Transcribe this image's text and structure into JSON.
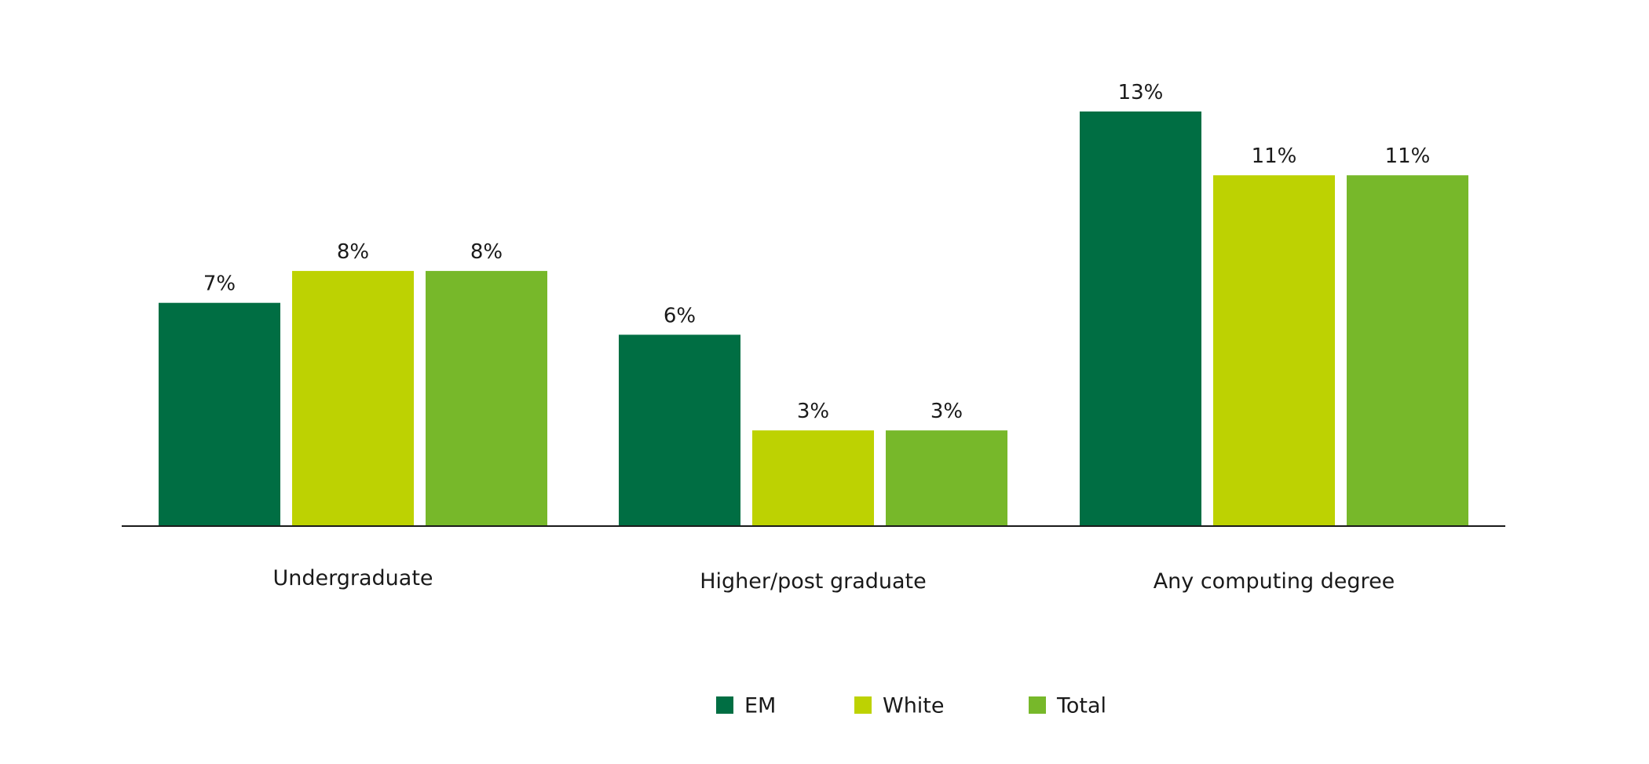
{
  "chart_data": {
    "type": "bar",
    "categories": [
      "Undergraduate",
      "Higher/post graduate",
      "Any computing degree"
    ],
    "series": [
      {
        "name": "EM",
        "color": "#006e43",
        "values": [
          7,
          6,
          13
        ],
        "labels": [
          "7%",
          "6%",
          "13%"
        ]
      },
      {
        "name": "White",
        "color": "#bdd202",
        "values": [
          8,
          3,
          11
        ],
        "labels": [
          "8%",
          "3%",
          "11%"
        ]
      },
      {
        "name": "Total",
        "color": "#77b82a",
        "values": [
          8,
          3,
          11
        ],
        "labels": [
          "8%",
          "3%",
          "11%"
        ]
      }
    ],
    "unit": "%",
    "ylim": [
      0,
      13
    ],
    "legend_position": "bottom-center",
    "grid": false,
    "title": "",
    "xlabel": "",
    "ylabel": ""
  }
}
